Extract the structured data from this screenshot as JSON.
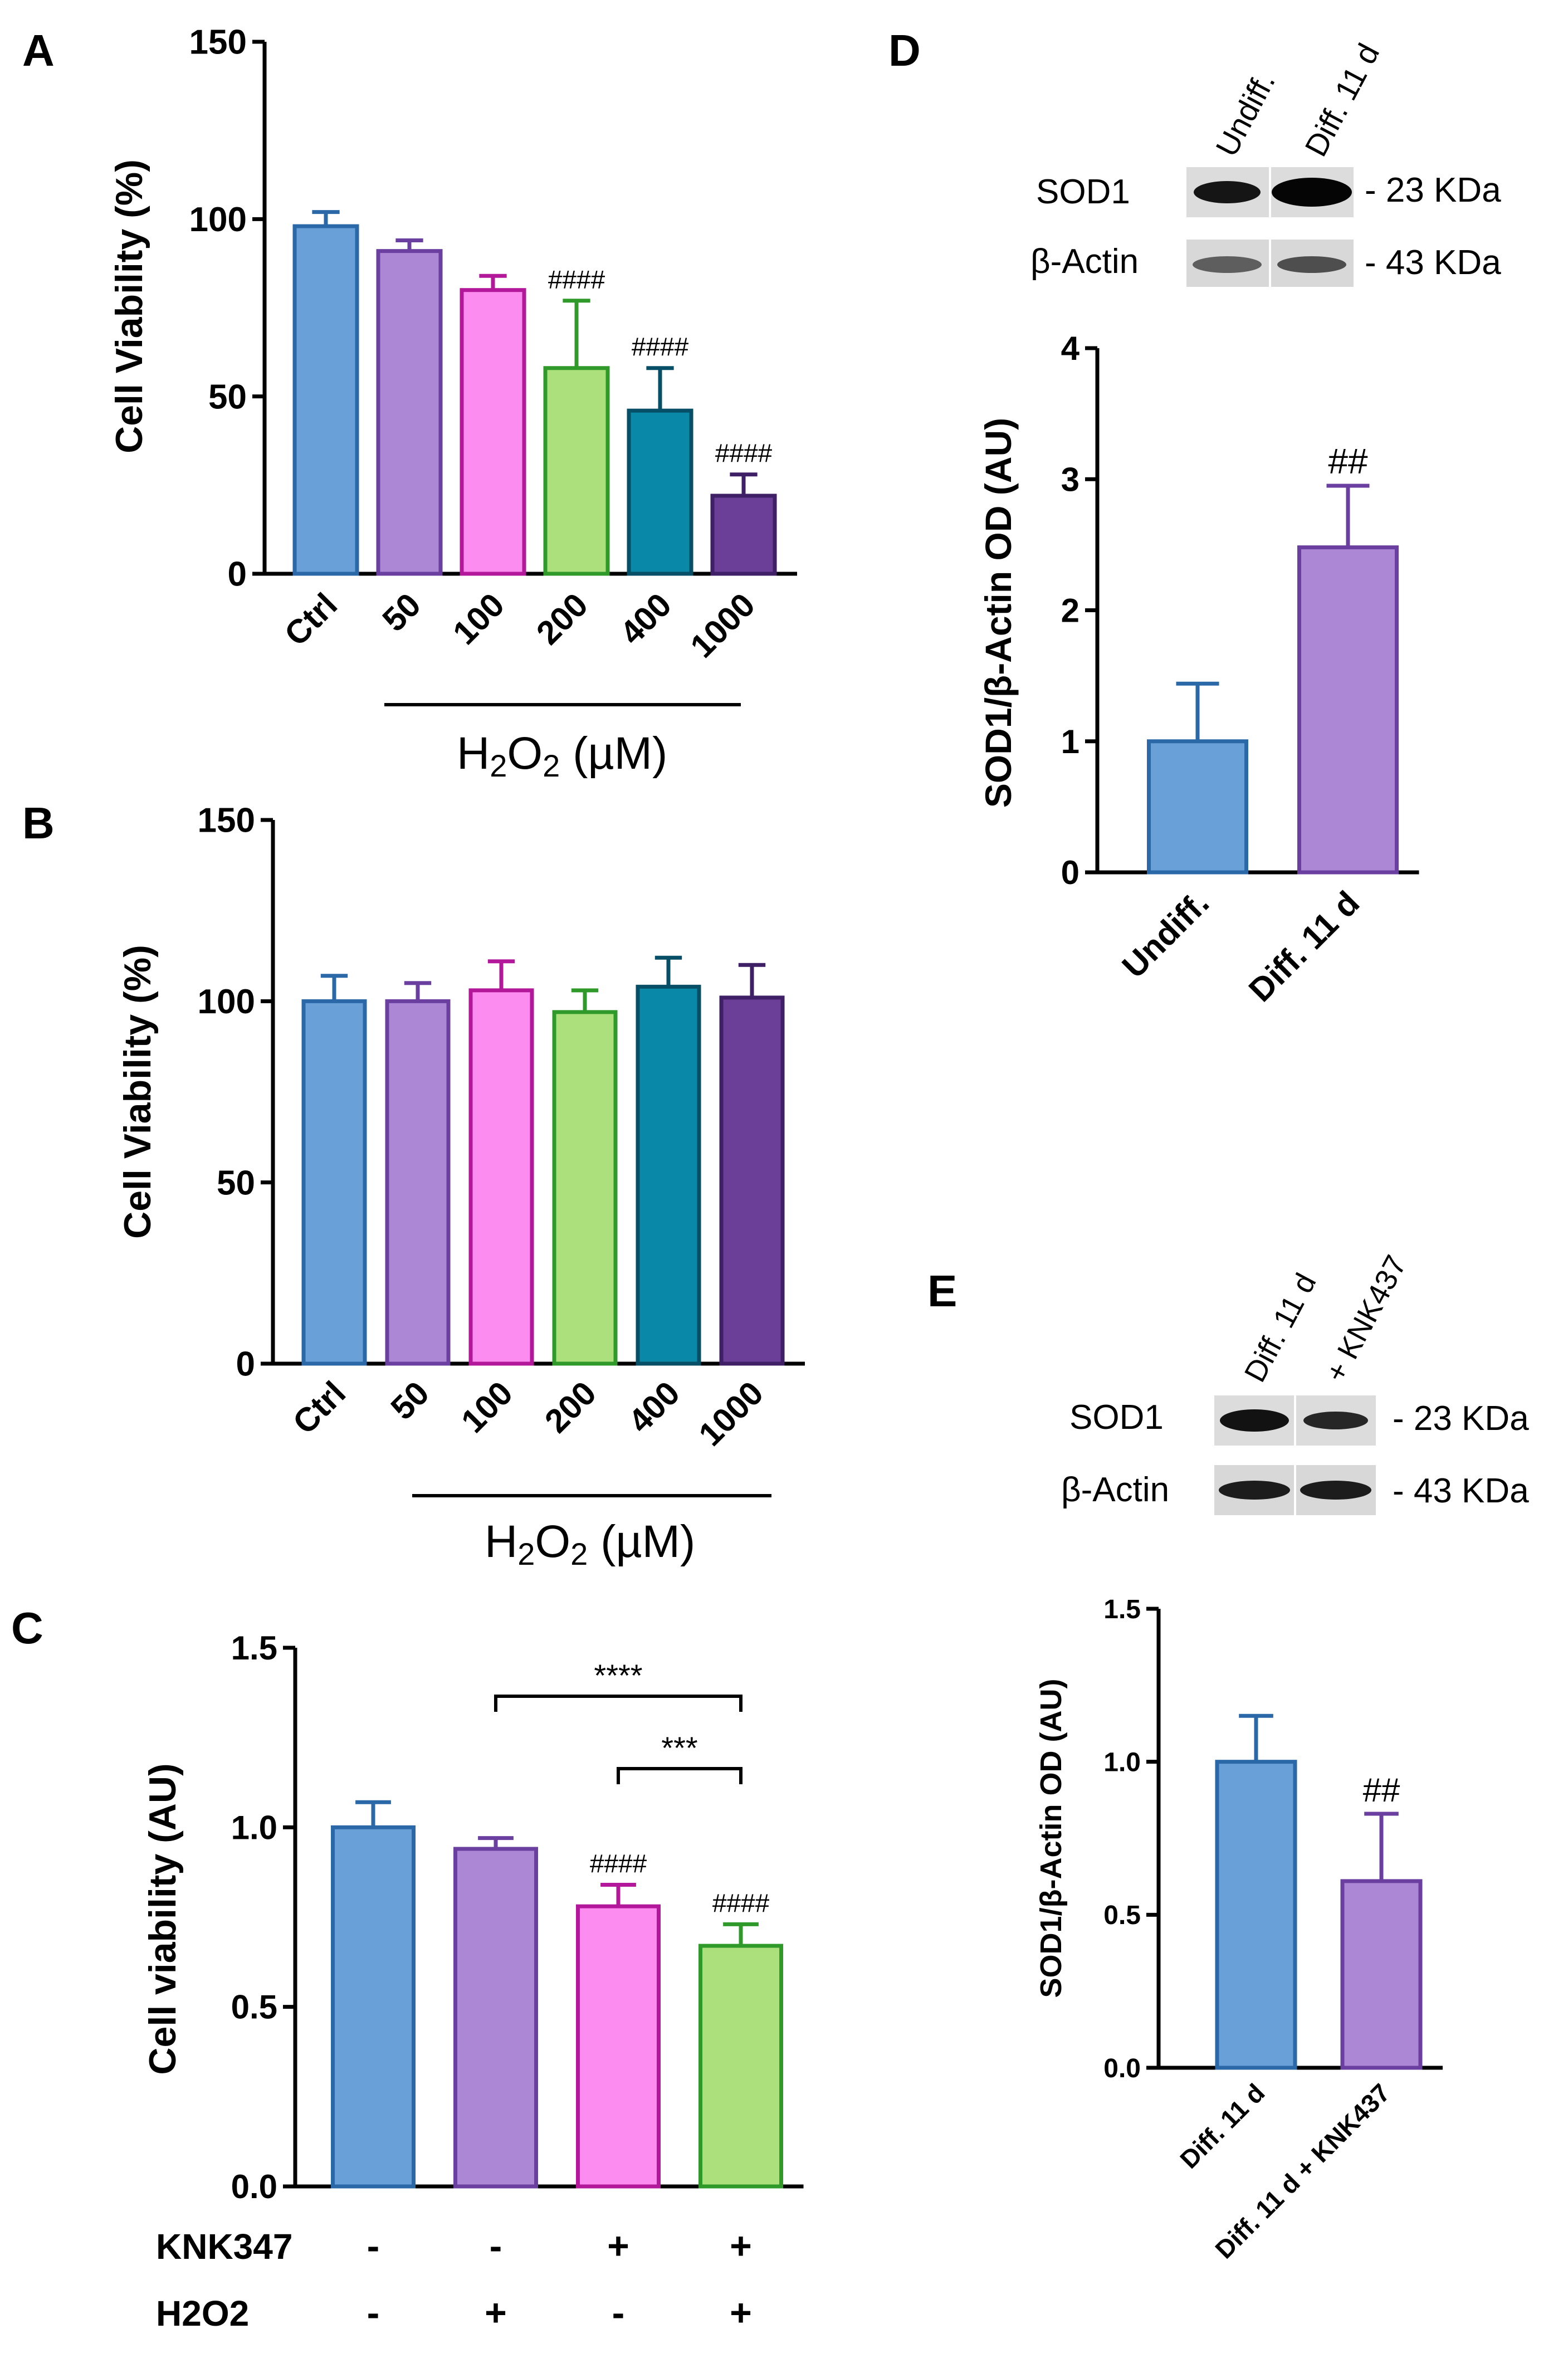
{
  "colors": {
    "blue": "#6aa0d8",
    "blue_edge": "#2a68a8",
    "lavender": "#ac87d6",
    "lavender_edge": "#6a3fa0",
    "pink": "#fd8cf0",
    "pink_edge": "#b3189a",
    "green": "#ace07d",
    "green_edge": "#2f9a2a",
    "teal": "#0a88a8",
    "teal_edge": "#064f66",
    "purple": "#6b3f98",
    "purple_edge": "#3f1f66"
  },
  "panels": {
    "A": "A",
    "B": "B",
    "C": "C",
    "D": "D",
    "E": "E"
  },
  "h2o2_label": {
    "prefix": "H",
    "sub1": "2",
    "mid": "O",
    "sub2": "2",
    "suffix": " (µM)"
  },
  "blots": {
    "D": {
      "lanes": [
        "Undiff.",
        "Diff. 11 d"
      ],
      "rows": [
        {
          "protein": "SOD1",
          "weight": "- 23 KDa"
        },
        {
          "protein": "β-Actin",
          "weight": "- 43 KDa"
        }
      ]
    },
    "E": {
      "lanes": [
        "Diff. 11 d",
        "+ KNK437"
      ],
      "rows": [
        {
          "protein": "SOD1",
          "weight": "- 23 KDa"
        },
        {
          "protein": "β-Actin",
          "weight": "- 43 KDa"
        }
      ]
    }
  },
  "chart_data": [
    {
      "panel": "A",
      "type": "bar",
      "categories": [
        "Ctrl",
        "50",
        "100",
        "200",
        "400",
        "1000"
      ],
      "values": [
        98,
        91,
        80,
        58,
        46,
        22
      ],
      "errors": [
        4,
        3,
        4,
        19,
        12,
        6
      ],
      "annotations": [
        "",
        "",
        "",
        "####",
        "####",
        "####"
      ],
      "ylabel": "Cell Viability (%)",
      "ylim": [
        0,
        150
      ],
      "yticks": [
        "0",
        "50",
        "100",
        "150"
      ]
    },
    {
      "panel": "B",
      "type": "bar",
      "categories": [
        "Ctrl",
        "50",
        "100",
        "200",
        "400",
        "1000"
      ],
      "values": [
        100,
        100,
        103,
        97,
        104,
        101
      ],
      "errors": [
        7,
        5,
        8,
        6,
        8,
        9
      ],
      "annotations": [
        "",
        "",
        "",
        "",
        "",
        ""
      ],
      "ylabel": "Cell Viability (%)",
      "ylim": [
        0,
        150
      ],
      "yticks": [
        "0",
        "50",
        "100",
        "150"
      ]
    },
    {
      "panel": "C",
      "type": "bar",
      "categories": [
        "",
        "",
        "",
        ""
      ],
      "values": [
        1.0,
        0.94,
        0.78,
        0.67
      ],
      "errors": [
        0.07,
        0.03,
        0.06,
        0.06
      ],
      "annotations": [
        "",
        "",
        "####",
        "####"
      ],
      "comparisons": [
        {
          "from": 1,
          "to": 3,
          "label": "****"
        },
        {
          "from": 2,
          "to": 3,
          "label": "***"
        }
      ],
      "factors": [
        {
          "name": "KNK347",
          "levels": [
            "-",
            "-",
            "+",
            "+"
          ]
        },
        {
          "name": "H2O2",
          "levels": [
            "-",
            "+",
            "-",
            "+"
          ]
        }
      ],
      "ylabel": "Cell viability (AU)",
      "ylim": [
        0,
        1.5
      ],
      "yticks": [
        "0.0",
        "0.5",
        "1.0",
        "1.5"
      ]
    },
    {
      "panel": "D",
      "type": "bar",
      "categories": [
        "Undiff.",
        "Diff. 11 d"
      ],
      "values": [
        1.0,
        2.48
      ],
      "errors": [
        0.44,
        0.47
      ],
      "annotations": [
        "",
        "##"
      ],
      "ylabel": "SOD1/β-Actin OD (AU)",
      "ylim": [
        0,
        4
      ],
      "yticks": [
        "0",
        "1",
        "2",
        "3",
        "4"
      ]
    },
    {
      "panel": "E",
      "type": "bar",
      "categories": [
        "Diff. 11 d",
        "Diff. 11 d + KNK437"
      ],
      "values": [
        1.0,
        0.61
      ],
      "errors": [
        0.15,
        0.22
      ],
      "annotations": [
        "",
        "##"
      ],
      "ylabel": "SOD1/β-Actin OD (AU)",
      "ylim": [
        0,
        1.5
      ],
      "yticks": [
        "0.0",
        "0.5",
        "1.0",
        "1.5"
      ]
    }
  ]
}
